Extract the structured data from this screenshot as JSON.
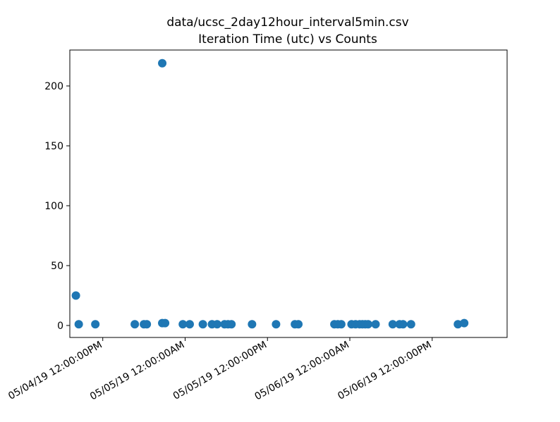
{
  "chart_data": {
    "type": "scatter",
    "title_line1": "data/ucsc_2day12hour_interval5min.csv",
    "title_line2": "Iteration Time (utc) vs Counts",
    "xlabel": "",
    "ylabel": "",
    "x_axis_kind": "datetime",
    "xlim": [
      "2019-05-04T07:12:00",
      "2019-05-06T22:55:00"
    ],
    "ylim": [
      -10,
      230
    ],
    "x_ticks": [
      {
        "value": "2019-05-04T12:00:00",
        "label": "05/04/19 12:00:00PM"
      },
      {
        "value": "2019-05-05T00:00:00",
        "label": "05/05/19 12:00:00AM"
      },
      {
        "value": "2019-05-05T12:00:00",
        "label": "05/05/19 12:00:00PM"
      },
      {
        "value": "2019-05-06T00:00:00",
        "label": "05/06/19 12:00:00AM"
      },
      {
        "value": "2019-05-06T12:00:00",
        "label": "05/06/19 12:00:00PM"
      }
    ],
    "y_ticks": [
      0,
      50,
      100,
      150,
      200
    ],
    "grid": false,
    "marker_color": "#1f77b4",
    "points": [
      {
        "x": "2019-05-04T08:05:00",
        "y": 25
      },
      {
        "x": "2019-05-04T08:30:00",
        "y": 1
      },
      {
        "x": "2019-05-04T10:55:00",
        "y": 1
      },
      {
        "x": "2019-05-04T16:40:00",
        "y": 1
      },
      {
        "x": "2019-05-04T18:00:00",
        "y": 1
      },
      {
        "x": "2019-05-04T18:25:00",
        "y": 1
      },
      {
        "x": "2019-05-04T20:40:00",
        "y": 219
      },
      {
        "x": "2019-05-04T20:40:00",
        "y": 2
      },
      {
        "x": "2019-05-04T21:05:00",
        "y": 2
      },
      {
        "x": "2019-05-04T23:40:00",
        "y": 1
      },
      {
        "x": "2019-05-05T00:40:00",
        "y": 1
      },
      {
        "x": "2019-05-05T02:35:00",
        "y": 1
      },
      {
        "x": "2019-05-05T03:55:00",
        "y": 1
      },
      {
        "x": "2019-05-05T04:40:00",
        "y": 1
      },
      {
        "x": "2019-05-05T05:45:00",
        "y": 1
      },
      {
        "x": "2019-05-05T06:15:00",
        "y": 1
      },
      {
        "x": "2019-05-05T06:45:00",
        "y": 1
      },
      {
        "x": "2019-05-05T09:45:00",
        "y": 1
      },
      {
        "x": "2019-05-05T13:15:00",
        "y": 1
      },
      {
        "x": "2019-05-05T16:00:00",
        "y": 1
      },
      {
        "x": "2019-05-05T16:30:00",
        "y": 1
      },
      {
        "x": "2019-05-05T21:45:00",
        "y": 1
      },
      {
        "x": "2019-05-05T22:15:00",
        "y": 1
      },
      {
        "x": "2019-05-05T22:45:00",
        "y": 1
      },
      {
        "x": "2019-05-06T00:15:00",
        "y": 1
      },
      {
        "x": "2019-05-06T00:50:00",
        "y": 1
      },
      {
        "x": "2019-05-06T01:25:00",
        "y": 1
      },
      {
        "x": "2019-05-06T01:50:00",
        "y": 1
      },
      {
        "x": "2019-05-06T02:15:00",
        "y": 1
      },
      {
        "x": "2019-05-06T02:40:00",
        "y": 1
      },
      {
        "x": "2019-05-06T03:45:00",
        "y": 1
      },
      {
        "x": "2019-05-06T06:15:00",
        "y": 1
      },
      {
        "x": "2019-05-06T07:15:00",
        "y": 1
      },
      {
        "x": "2019-05-06T07:45:00",
        "y": 1
      },
      {
        "x": "2019-05-06T08:55:00",
        "y": 1
      },
      {
        "x": "2019-05-06T15:45:00",
        "y": 1
      },
      {
        "x": "2019-05-06T16:40:00",
        "y": 2
      }
    ]
  }
}
